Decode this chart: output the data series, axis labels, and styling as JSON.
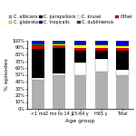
{
  "categories": [
    "<1 mo",
    "2 mo to 14 y",
    "15-64 y",
    "H65 y",
    "Total"
  ],
  "series": [
    {
      "label": "C. albicans",
      "color": "#b0b0b0",
      "values": [
        43,
        50,
        50,
        55,
        50
      ]
    },
    {
      "label": "C. krusei",
      "color": "#ffffff",
      "values": [
        2,
        2,
        18,
        18,
        8
      ]
    },
    {
      "label": "C. parapsilosis",
      "color": "#000000",
      "values": [
        43,
        38,
        18,
        12,
        27
      ]
    },
    {
      "label": "C. tropicalis",
      "color": "#cc0000",
      "values": [
        5,
        3,
        4,
        5,
        4
      ]
    },
    {
      "label": "C. glabrata",
      "color": "#ffff00",
      "values": [
        1,
        2,
        3,
        3,
        3
      ]
    },
    {
      "label": "C. dubliniensis",
      "color": "#006600",
      "values": [
        2,
        2,
        2,
        2,
        2
      ]
    },
    {
      "label": "Other",
      "color": "#0000cc",
      "values": [
        4,
        3,
        5,
        5,
        6
      ]
    }
  ],
  "xlabel": "Age group",
  "ylabel": "% episodes",
  "ylim": [
    0,
    100
  ],
  "yticks": [
    0,
    10,
    20,
    30,
    40,
    50,
    60,
    70,
    80,
    90,
    100
  ],
  "background_color": "#ffffff",
  "legend_fontsize": 3.5,
  "axis_fontsize": 4.5,
  "tick_fontsize": 3.5
}
